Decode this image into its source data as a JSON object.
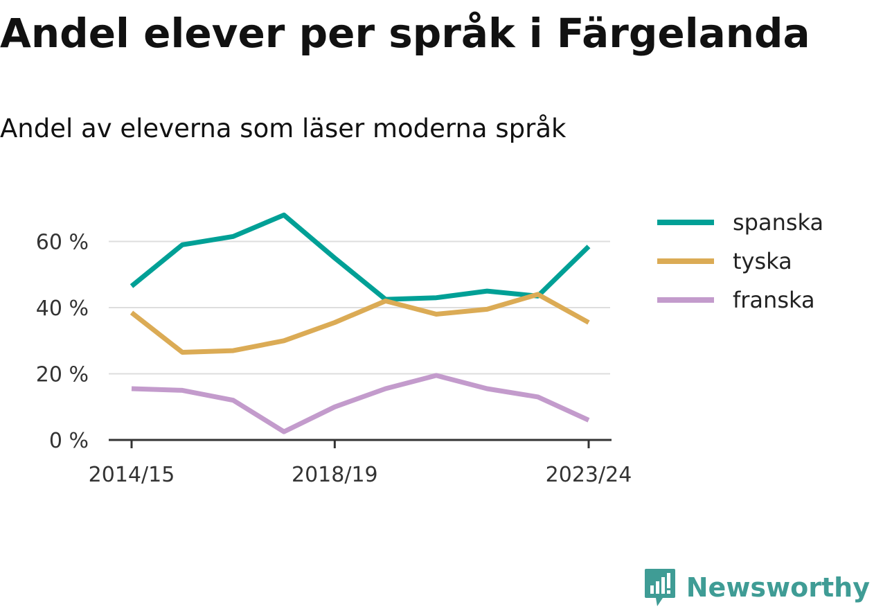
{
  "title": "Andel elever per språk i Färgelanda",
  "subtitle": "Andel av eleverna som läser moderna språk",
  "brand": {
    "name": "Newsworthy",
    "color": "#3f9c95",
    "icon": "newsworthy-logo-icon"
  },
  "chart_data": {
    "type": "line",
    "x": [
      "2014/15",
      "2015/16",
      "2016/17",
      "2017/18",
      "2018/19",
      "2019/20",
      "2020/21",
      "2021/22",
      "2022/23",
      "2023/24"
    ],
    "x_tick_labels": [
      "2014/15",
      "2018/19",
      "2023/24"
    ],
    "series": [
      {
        "name": "spanska",
        "color": "#00a096",
        "values": [
          46.5,
          59,
          61.5,
          68,
          55,
          42.5,
          43,
          45,
          43.5,
          58.5
        ]
      },
      {
        "name": "tyska",
        "color": "#dbab55",
        "values": [
          38.5,
          26.5,
          27,
          30,
          35.5,
          42,
          38,
          39.5,
          44,
          35.5
        ]
      },
      {
        "name": "franska",
        "color": "#c39bcc",
        "values": [
          15.5,
          15,
          12,
          2.5,
          10,
          15.5,
          19.5,
          15.5,
          13,
          6
        ]
      }
    ],
    "y_ticks": [
      0,
      20,
      40,
      60
    ],
    "y_tick_labels": [
      "0 %",
      "20 %",
      "40 %",
      "60 %"
    ],
    "ylim": [
      0,
      70
    ],
    "grid": "horizontal",
    "legend_position": "right"
  }
}
